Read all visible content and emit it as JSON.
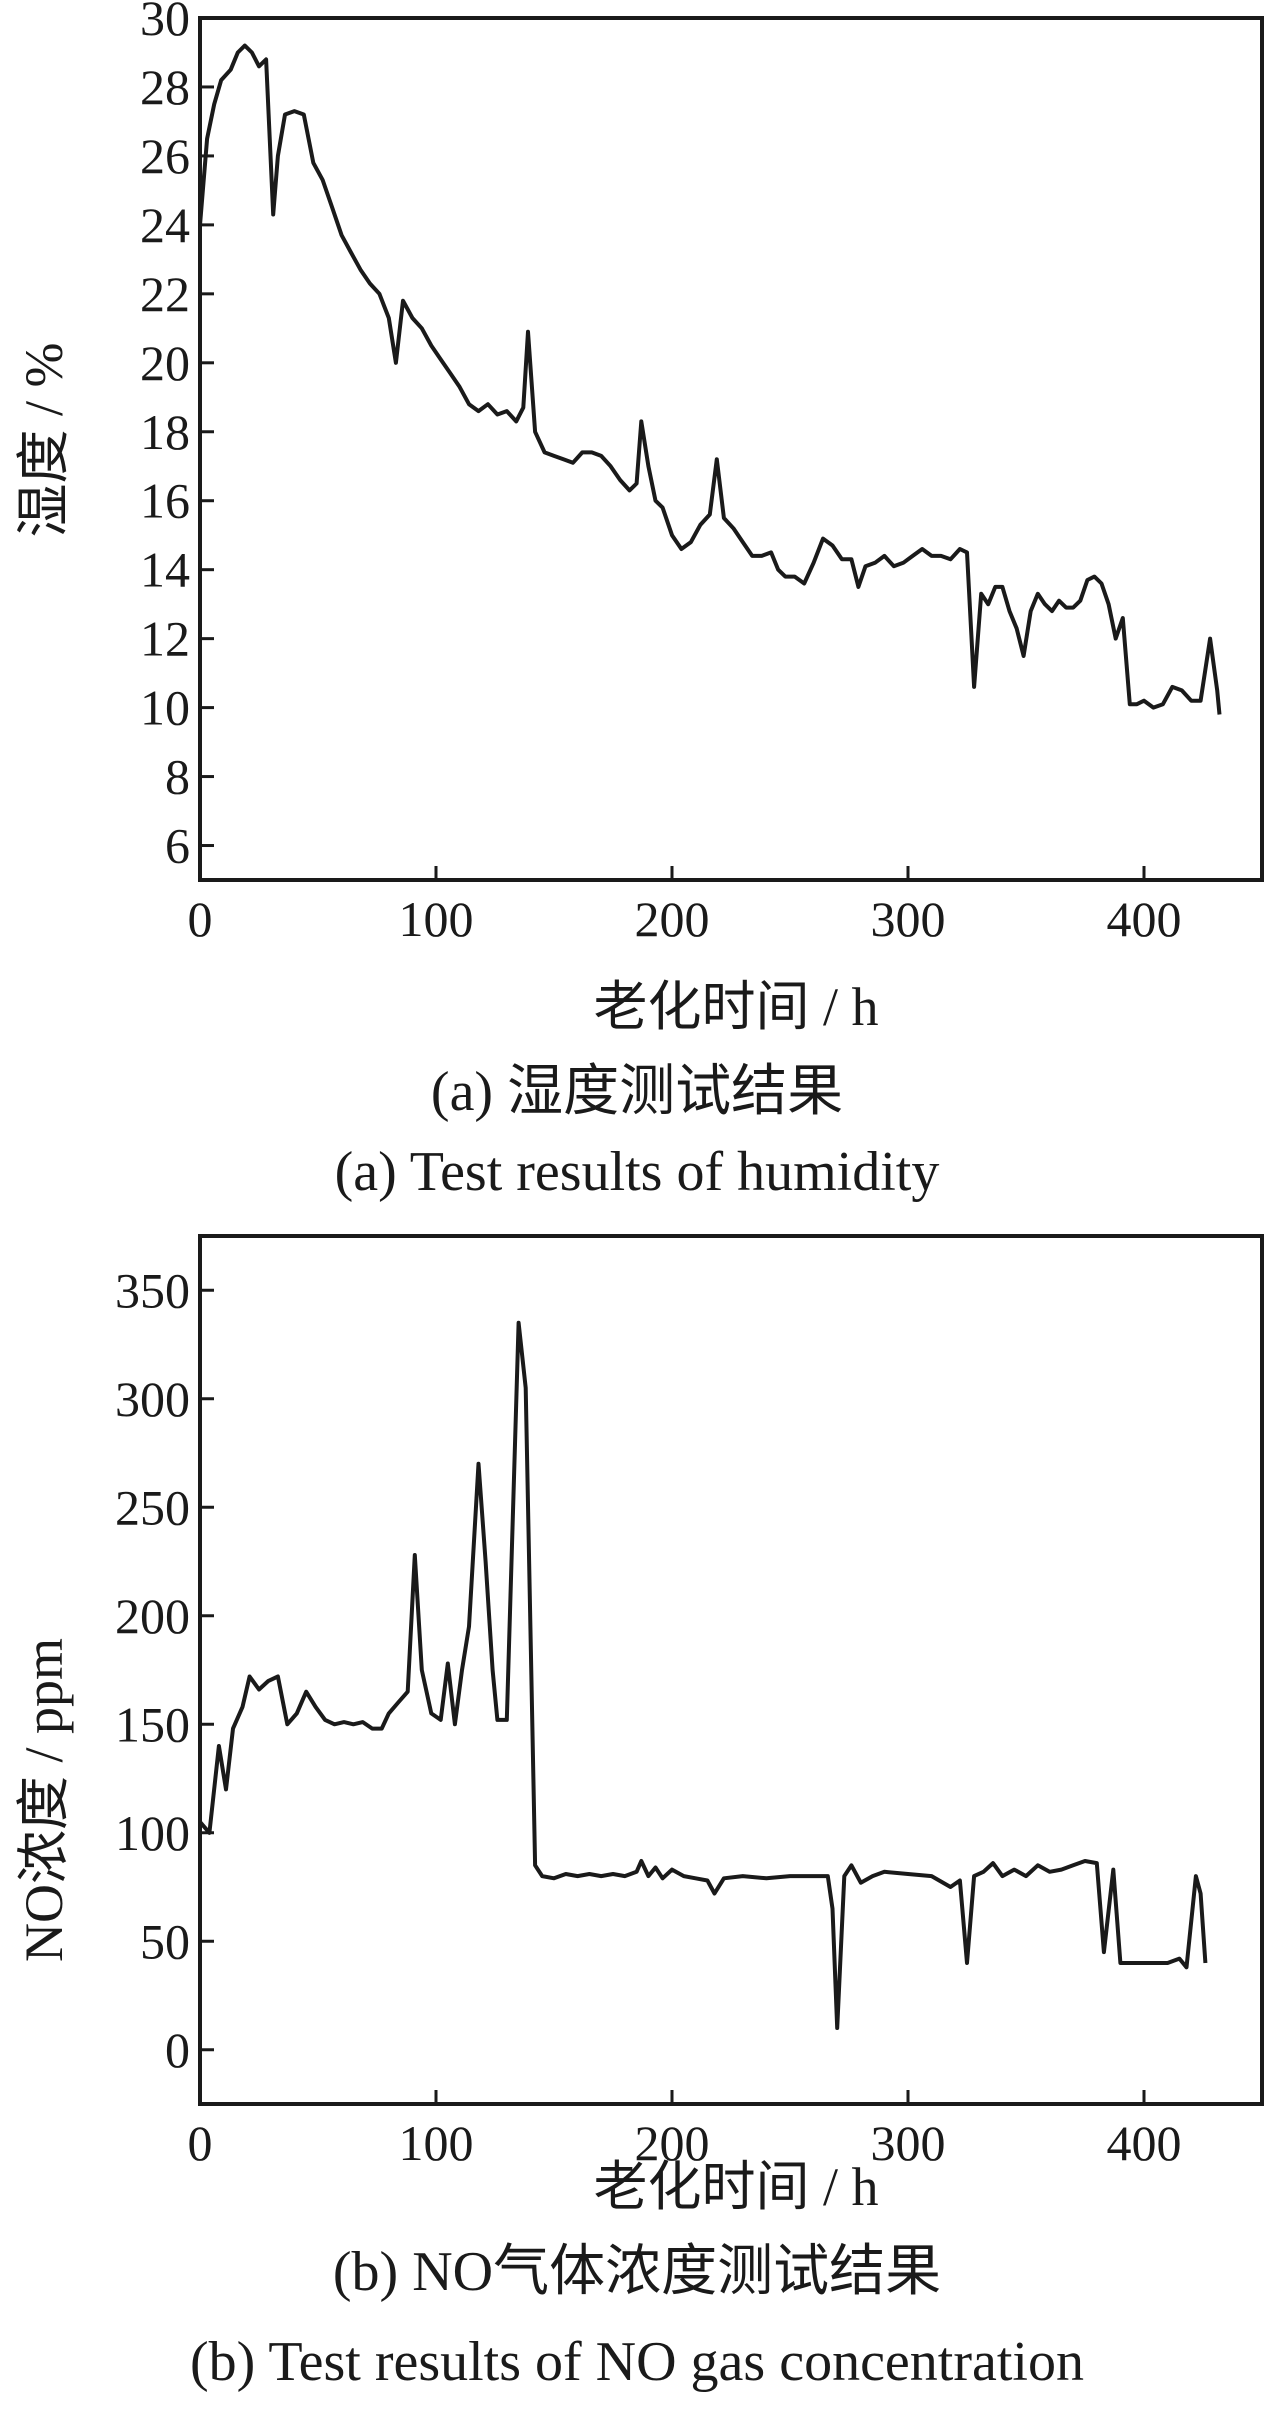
{
  "chart_data": [
    {
      "type": "line",
      "xlabel": "老化时间 / h",
      "ylabel": "湿度 / %",
      "xlim": [
        0,
        450
      ],
      "ylim": [
        5,
        30
      ],
      "xticks": [
        0,
        100,
        200,
        300,
        400
      ],
      "yticks": [
        6,
        8,
        10,
        12,
        14,
        16,
        18,
        20,
        22,
        24,
        26,
        28,
        30
      ],
      "grid": false,
      "caption_cn": "(a)  湿度测试结果",
      "caption_en": "(a)  Test results of humidity",
      "series": [
        {
          "color": "#1a1a1a",
          "points": [
            [
              0,
              24
            ],
            [
              3,
              26.5
            ],
            [
              6,
              27.5
            ],
            [
              9,
              28.2
            ],
            [
              13,
              28.5
            ],
            [
              16,
              29
            ],
            [
              19,
              29.2
            ],
            [
              22,
              29
            ],
            [
              25,
              28.6
            ],
            [
              28,
              28.8
            ],
            [
              31,
              24.3
            ],
            [
              33,
              26
            ],
            [
              36,
              27.2
            ],
            [
              40,
              27.3
            ],
            [
              44,
              27.2
            ],
            [
              48,
              25.8
            ],
            [
              52,
              25.3
            ],
            [
              56,
              24.5
            ],
            [
              60,
              23.7
            ],
            [
              64,
              23.2
            ],
            [
              68,
              22.7
            ],
            [
              72,
              22.3
            ],
            [
              76,
              22
            ],
            [
              80,
              21.3
            ],
            [
              83,
              20
            ],
            [
              86,
              21.8
            ],
            [
              90,
              21.3
            ],
            [
              94,
              21
            ],
            [
              98,
              20.5
            ],
            [
              102,
              20.1
            ],
            [
              106,
              19.7
            ],
            [
              110,
              19.3
            ],
            [
              114,
              18.8
            ],
            [
              118,
              18.6
            ],
            [
              122,
              18.8
            ],
            [
              126,
              18.5
            ],
            [
              130,
              18.6
            ],
            [
              134,
              18.3
            ],
            [
              137,
              18.7
            ],
            [
              139,
              20.9
            ],
            [
              142,
              18
            ],
            [
              146,
              17.4
            ],
            [
              150,
              17.3
            ],
            [
              154,
              17.2
            ],
            [
              158,
              17.1
            ],
            [
              162,
              17.4
            ],
            [
              166,
              17.4
            ],
            [
              170,
              17.3
            ],
            [
              174,
              17
            ],
            [
              178,
              16.6
            ],
            [
              182,
              16.3
            ],
            [
              185,
              16.5
            ],
            [
              187,
              18.3
            ],
            [
              190,
              17
            ],
            [
              193,
              16
            ],
            [
              196,
              15.8
            ],
            [
              200,
              15
            ],
            [
              204,
              14.6
            ],
            [
              208,
              14.8
            ],
            [
              212,
              15.3
            ],
            [
              216,
              15.6
            ],
            [
              219,
              17.2
            ],
            [
              222,
              15.5
            ],
            [
              226,
              15.2
            ],
            [
              230,
              14.8
            ],
            [
              234,
              14.4
            ],
            [
              238,
              14.4
            ],
            [
              242,
              14.5
            ],
            [
              245,
              14
            ],
            [
              248,
              13.8
            ],
            [
              252,
              13.8
            ],
            [
              256,
              13.6
            ],
            [
              260,
              14.2
            ],
            [
              264,
              14.9
            ],
            [
              268,
              14.7
            ],
            [
              272,
              14.3
            ],
            [
              276,
              14.3
            ],
            [
              279,
              13.5
            ],
            [
              282,
              14.1
            ],
            [
              286,
              14.2
            ],
            [
              290,
              14.4
            ],
            [
              294,
              14.1
            ],
            [
              298,
              14.2
            ],
            [
              302,
              14.4
            ],
            [
              306,
              14.6
            ],
            [
              310,
              14.4
            ],
            [
              314,
              14.4
            ],
            [
              318,
              14.3
            ],
            [
              322,
              14.6
            ],
            [
              325,
              14.5
            ],
            [
              328,
              10.6
            ],
            [
              331,
              13.3
            ],
            [
              334,
              13
            ],
            [
              337,
              13.5
            ],
            [
              340,
              13.5
            ],
            [
              343,
              12.8
            ],
            [
              346,
              12.3
            ],
            [
              349,
              11.5
            ],
            [
              352,
              12.8
            ],
            [
              355,
              13.3
            ],
            [
              358,
              13
            ],
            [
              361,
              12.8
            ],
            [
              364,
              13.1
            ],
            [
              367,
              12.9
            ],
            [
              370,
              12.9
            ],
            [
              373,
              13.1
            ],
            [
              376,
              13.7
            ],
            [
              379,
              13.8
            ],
            [
              382,
              13.6
            ],
            [
              385,
              13
            ],
            [
              388,
              12
            ],
            [
              391,
              12.6
            ],
            [
              394,
              10.1
            ],
            [
              397,
              10.1
            ],
            [
              400,
              10.2
            ],
            [
              404,
              10
            ],
            [
              408,
              10.1
            ],
            [
              412,
              10.6
            ],
            [
              416,
              10.5
            ],
            [
              420,
              10.2
            ],
            [
              424,
              10.2
            ],
            [
              428,
              12
            ],
            [
              431,
              10.5
            ],
            [
              432,
              9.8
            ]
          ]
        }
      ]
    },
    {
      "type": "line",
      "xlabel": "老化时间 / h",
      "ylabel": "NO浓度 / ppm",
      "xlim": [
        0,
        450
      ],
      "ylim": [
        -25,
        375
      ],
      "xticks": [
        0,
        100,
        200,
        300,
        400
      ],
      "yticks": [
        0,
        50,
        100,
        150,
        200,
        250,
        300,
        350
      ],
      "grid": false,
      "caption_cn": "(b)  NO气体浓度测试结果",
      "caption_en": "(b)  Test results of NO gas concentration",
      "series": [
        {
          "color": "#1a1a1a",
          "points": [
            [
              0,
              105
            ],
            [
              4,
              100
            ],
            [
              8,
              140
            ],
            [
              11,
              120
            ],
            [
              14,
              148
            ],
            [
              18,
              158
            ],
            [
              21,
              172
            ],
            [
              25,
              166
            ],
            [
              29,
              170
            ],
            [
              33,
              172
            ],
            [
              37,
              150
            ],
            [
              41,
              155
            ],
            [
              45,
              165
            ],
            [
              49,
              158
            ],
            [
              53,
              152
            ],
            [
              57,
              150
            ],
            [
              61,
              151
            ],
            [
              65,
              150
            ],
            [
              69,
              151
            ],
            [
              73,
              148
            ],
            [
              77,
              148
            ],
            [
              80,
              155
            ],
            [
              84,
              160
            ],
            [
              88,
              165
            ],
            [
              91,
              228
            ],
            [
              94,
              175
            ],
            [
              98,
              155
            ],
            [
              102,
              152
            ],
            [
              105,
              178
            ],
            [
              108,
              150
            ],
            [
              111,
              175
            ],
            [
              114,
              195
            ],
            [
              118,
              270
            ],
            [
              121,
              225
            ],
            [
              124,
              175
            ],
            [
              126,
              152
            ],
            [
              130,
              152
            ],
            [
              135,
              335
            ],
            [
              138,
              305
            ],
            [
              142,
              85
            ],
            [
              145,
              80
            ],
            [
              150,
              79
            ],
            [
              155,
              81
            ],
            [
              160,
              80
            ],
            [
              165,
              81
            ],
            [
              170,
              80
            ],
            [
              175,
              81
            ],
            [
              180,
              80
            ],
            [
              185,
              82
            ],
            [
              187,
              87
            ],
            [
              190,
              80
            ],
            [
              193,
              84
            ],
            [
              196,
              79
            ],
            [
              200,
              83
            ],
            [
              205,
              80
            ],
            [
              210,
              79
            ],
            [
              215,
              78
            ],
            [
              218,
              72
            ],
            [
              222,
              79
            ],
            [
              230,
              80
            ],
            [
              240,
              79
            ],
            [
              250,
              80
            ],
            [
              260,
              80
            ],
            [
              266,
              80
            ],
            [
              268,
              65
            ],
            [
              270,
              10
            ],
            [
              273,
              80
            ],
            [
              276,
              85
            ],
            [
              280,
              77
            ],
            [
              285,
              80
            ],
            [
              290,
              82
            ],
            [
              300,
              81
            ],
            [
              310,
              80
            ],
            [
              318,
              75
            ],
            [
              322,
              78
            ],
            [
              325,
              40
            ],
            [
              328,
              80
            ],
            [
              332,
              82
            ],
            [
              336,
              86
            ],
            [
              340,
              80
            ],
            [
              345,
              83
            ],
            [
              350,
              80
            ],
            [
              355,
              85
            ],
            [
              360,
              82
            ],
            [
              365,
              83
            ],
            [
              370,
              85
            ],
            [
              375,
              87
            ],
            [
              380,
              86
            ],
            [
              383,
              45
            ],
            [
              387,
              83
            ],
            [
              390,
              40
            ],
            [
              395,
              40
            ],
            [
              400,
              40
            ],
            [
              405,
              40
            ],
            [
              410,
              40
            ],
            [
              415,
              42
            ],
            [
              418,
              38
            ],
            [
              422,
              80
            ],
            [
              424,
              72
            ],
            [
              426,
              40
            ]
          ]
        }
      ]
    }
  ]
}
